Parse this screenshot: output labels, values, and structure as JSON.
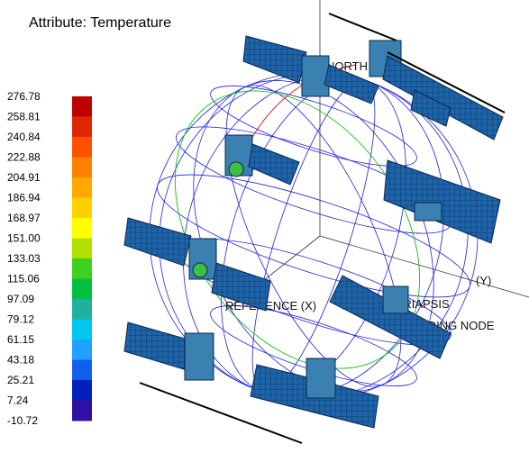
{
  "header": {
    "title": "Attribute: Temperature"
  },
  "legend": {
    "labels": [
      "276.78",
      "258.81",
      "240.84",
      "222.88",
      "204.91",
      "186.94",
      "168.97",
      "151.00",
      "133.03",
      "115.06",
      "97.09",
      "79.12",
      "61.15",
      "43.18",
      "25.21",
      "7.24",
      "-10.72"
    ],
    "colors": [
      "#c00000",
      "#e02800",
      "#ff5000",
      "#ff8000",
      "#ffa800",
      "#ffd000",
      "#ffff00",
      "#b0e000",
      "#40d020",
      "#00c040",
      "#20b0a0",
      "#00c8f0",
      "#20a0ff",
      "#1060f0",
      "#0020c0",
      "#3010a0"
    ]
  },
  "scene": {
    "labels": [
      "NORTH",
      "(Y)",
      "REFERENCE (X)",
      "PERIAPSIS",
      "ASCENDING NODE"
    ]
  }
}
